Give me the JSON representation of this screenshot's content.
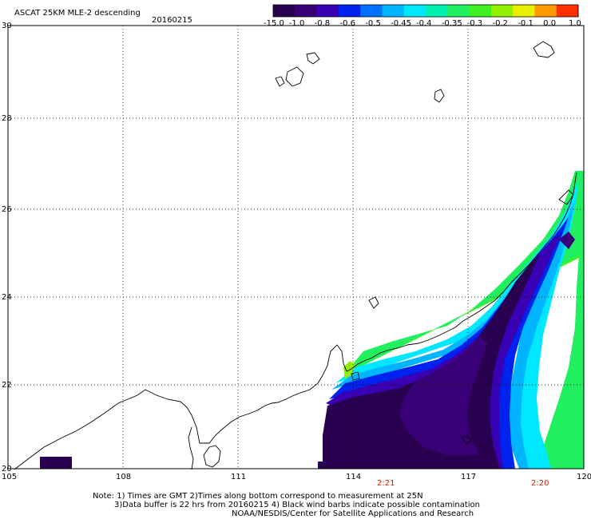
{
  "header": {
    "title": "ASCAT 25KM MLE-2 descending",
    "date": "20160215"
  },
  "colorbar": {
    "colors": [
      "#2a0050",
      "#3a0078",
      "#3a00b4",
      "#0022ee",
      "#0070ff",
      "#00b4ff",
      "#00e8ff",
      "#00f0b0",
      "#20f060",
      "#40f020",
      "#90f000",
      "#e8f000",
      "#ff9a00",
      "#ff3000"
    ],
    "labels": [
      "-15.0",
      "-1.0",
      "-0.8",
      "-0.6",
      "-0.5",
      "-0.45",
      "-0.4",
      "-0.35",
      "-0.3",
      "-0.2",
      "-0.1",
      "0.0",
      "1.0"
    ]
  },
  "axes": {
    "lon_labels": [
      "105",
      "108",
      "111",
      "114",
      "117",
      "120"
    ],
    "lat_labels": [
      "30",
      "28",
      "26",
      "24",
      "22",
      "20"
    ]
  },
  "pass_times": [
    "2:21",
    "2:20"
  ],
  "notes": {
    "line1": "Note: 1) Times are GMT 2)Times along bottom correspond to measurement at 25N",
    "line2": "3)Data buffer is 22 hrs from 20160215 4) Black wind barbs indicate possible contamination",
    "line3": "NOAA/NESDIS/Center for Satellite Applications and Research"
  }
}
